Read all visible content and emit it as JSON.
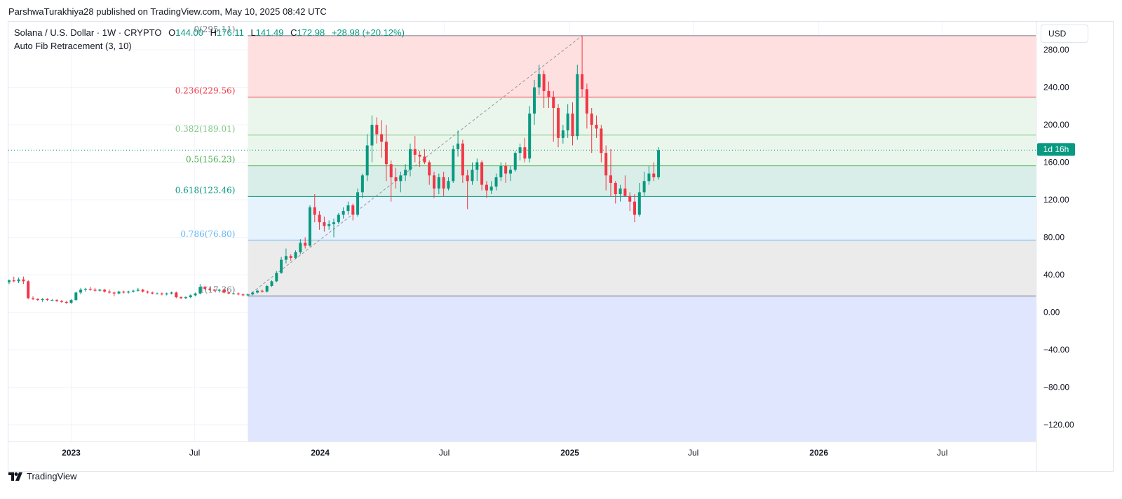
{
  "header": {
    "published": "ParshwaTurakhiya28 published on TradingView.com, May 10, 2025 08:42 UTC"
  },
  "legend": {
    "symbol": "Solana / U.S. Dollar · 1W · CRYPTO",
    "open_label": "O",
    "open": "144.00",
    "high_label": "H",
    "high": "176.11",
    "low_label": "L",
    "low": "141.49",
    "close_label": "C",
    "close": "172.98",
    "change": "+28.98 (+20.12%)",
    "indicator": "Auto Fib Retracement (3, 10)"
  },
  "toolbar": {
    "currency": "USD"
  },
  "footer": {
    "brand": "TradingView"
  },
  "colors": {
    "up": "#089981",
    "down": "#f23645",
    "grid": "#f0f3fa",
    "axis_text": "#131722"
  },
  "chart_data": {
    "type": "candlestick",
    "symbol": "SOL/USD",
    "interval": "1W",
    "x_axis": {
      "ticks": [
        {
          "label": "2023",
          "date": "2023-01-01",
          "bold": true
        },
        {
          "label": "Jul",
          "date": "2023-07-01",
          "bold": false
        },
        {
          "label": "2024",
          "date": "2024-01-01",
          "bold": true
        },
        {
          "label": "Jul",
          "date": "2024-07-01",
          "bold": false
        },
        {
          "label": "2025",
          "date": "2025-01-01",
          "bold": true
        },
        {
          "label": "Jul",
          "date": "2025-07-01",
          "bold": false
        },
        {
          "label": "2026",
          "date": "2026-01-01",
          "bold": true
        },
        {
          "label": "Jul",
          "date": "2026-07-01",
          "bold": false
        }
      ],
      "range": [
        "2022-10-01",
        "2026-11-15"
      ]
    },
    "y_axis": {
      "range": [
        -138,
        310
      ],
      "ticks": [
        "280.00",
        "240.00",
        "200.00",
        "160.00",
        "120.00",
        "80.00",
        "40.00",
        "0.00",
        "−40.00",
        "−80.00",
        "−120.00"
      ],
      "tick_values": [
        280,
        240,
        200,
        160,
        120,
        80,
        40,
        0,
        -40,
        -80,
        -120
      ]
    },
    "last_price": 172.98,
    "countdown": "1d 16h",
    "fib_levels": [
      {
        "label": "0(295.11)",
        "value": 295.11,
        "color": "#787b86",
        "fill": "#ffe0e0"
      },
      {
        "label": "0.236(229.56)",
        "value": 229.56,
        "color": "#f23645",
        "fill": "#eaf6ec"
      },
      {
        "label": "0.382(189.01)",
        "value": 189.01,
        "color": "#81c784",
        "fill": "#eaf6ec"
      },
      {
        "label": "0.5(156.23)",
        "value": 156.23,
        "color": "#4caf50",
        "fill": "#daeee9"
      },
      {
        "label": "0.618(123.46)",
        "value": 123.46,
        "color": "#089981",
        "fill": "#e6f2fc"
      },
      {
        "label": "0.786(76.80)",
        "value": 76.8,
        "color": "#64b5f6",
        "fill": "#ebebeb"
      },
      {
        "label": "1(17.36)",
        "value": 17.36,
        "color": "#787b86",
        "fill": "#dfe6fd"
      }
    ],
    "fib_start_date": "2023-09-17",
    "trend_line": {
      "from": [
        "2023-09-17",
        17.36
      ],
      "to": [
        "2025-01-19",
        295.11
      ]
    },
    "candles": [
      [
        "2022-10-02",
        32,
        35,
        30,
        34
      ],
      [
        "2022-10-09",
        34,
        38,
        32,
        33
      ],
      [
        "2022-10-16",
        33,
        37,
        31,
        35
      ],
      [
        "2022-10-23",
        35,
        38,
        30,
        33
      ],
      [
        "2022-10-30",
        33,
        34,
        14,
        15
      ],
      [
        "2022-11-06",
        15,
        17,
        13,
        14
      ],
      [
        "2022-11-13",
        14,
        15,
        12,
        13
      ],
      [
        "2022-11-20",
        13,
        15,
        11,
        14
      ],
      [
        "2022-11-27",
        14,
        15,
        12,
        13
      ],
      [
        "2022-12-04",
        13,
        14,
        12,
        13
      ],
      [
        "2022-12-11",
        13,
        14,
        11,
        12
      ],
      [
        "2022-12-18",
        12,
        13,
        10,
        11
      ],
      [
        "2022-12-25",
        11,
        12,
        9,
        10
      ],
      [
        "2023-01-01",
        10,
        14,
        9,
        13
      ],
      [
        "2023-01-08",
        13,
        22,
        12,
        21
      ],
      [
        "2023-01-15",
        21,
        26,
        19,
        24
      ],
      [
        "2023-01-22",
        24,
        26,
        22,
        25
      ],
      [
        "2023-01-29",
        25,
        27,
        23,
        24
      ],
      [
        "2023-02-05",
        24,
        26,
        22,
        23
      ],
      [
        "2023-02-12",
        23,
        25,
        22,
        24
      ],
      [
        "2023-02-19",
        24,
        25,
        21,
        22
      ],
      [
        "2023-02-26",
        22,
        24,
        20,
        21
      ],
      [
        "2023-03-05",
        21,
        22,
        17,
        20
      ],
      [
        "2023-03-12",
        20,
        23,
        19,
        22
      ],
      [
        "2023-03-19",
        22,
        23,
        20,
        21
      ],
      [
        "2023-03-26",
        21,
        23,
        20,
        22
      ],
      [
        "2023-04-02",
        22,
        24,
        21,
        23
      ],
      [
        "2023-04-09",
        23,
        26,
        22,
        24
      ],
      [
        "2023-04-16",
        24,
        25,
        21,
        22
      ],
      [
        "2023-04-23",
        22,
        23,
        20,
        21
      ],
      [
        "2023-04-30",
        21,
        22,
        19,
        20
      ],
      [
        "2023-05-07",
        20,
        21,
        19,
        20
      ],
      [
        "2023-05-14",
        20,
        21,
        18,
        19
      ],
      [
        "2023-05-21",
        19,
        21,
        18,
        20
      ],
      [
        "2023-05-28",
        20,
        22,
        19,
        21
      ],
      [
        "2023-06-04",
        21,
        22,
        15,
        16
      ],
      [
        "2023-06-11",
        16,
        17,
        14,
        15
      ],
      [
        "2023-06-18",
        15,
        17,
        14,
        16
      ],
      [
        "2023-06-25",
        16,
        19,
        15,
        18
      ],
      [
        "2023-07-02",
        18,
        21,
        17,
        20
      ],
      [
        "2023-07-09",
        20,
        30,
        19,
        27
      ],
      [
        "2023-07-16",
        27,
        28,
        24,
        25
      ],
      [
        "2023-07-23",
        25,
        26,
        23,
        24
      ],
      [
        "2023-07-30",
        24,
        25,
        22,
        23
      ],
      [
        "2023-08-06",
        23,
        25,
        22,
        24
      ],
      [
        "2023-08-13",
        24,
        25,
        20,
        21
      ],
      [
        "2023-08-20",
        21,
        22,
        19,
        20
      ],
      [
        "2023-08-27",
        20,
        21,
        19,
        20
      ],
      [
        "2023-09-03",
        20,
        21,
        18,
        19
      ],
      [
        "2023-09-10",
        19,
        20,
        17,
        18
      ],
      [
        "2023-09-17",
        18,
        20,
        17,
        19
      ],
      [
        "2023-09-24",
        19,
        22,
        18,
        21
      ],
      [
        "2023-10-01",
        21,
        24,
        20,
        23
      ],
      [
        "2023-10-08",
        23,
        24,
        21,
        22
      ],
      [
        "2023-10-15",
        22,
        29,
        21,
        28
      ],
      [
        "2023-10-22",
        28,
        34,
        27,
        33
      ],
      [
        "2023-10-29",
        33,
        44,
        32,
        42
      ],
      [
        "2023-11-05",
        42,
        59,
        41,
        56
      ],
      [
        "2023-11-12",
        56,
        68,
        52,
        60
      ],
      [
        "2023-11-19",
        60,
        62,
        55,
        58
      ],
      [
        "2023-11-26",
        58,
        66,
        57,
        64
      ],
      [
        "2023-12-03",
        64,
        78,
        62,
        74
      ],
      [
        "2023-12-10",
        74,
        80,
        68,
        71
      ],
      [
        "2023-12-17",
        71,
        114,
        70,
        112
      ],
      [
        "2023-12-24",
        112,
        126,
        96,
        104
      ],
      [
        "2023-12-31",
        104,
        108,
        88,
        96
      ],
      [
        "2024-01-07",
        96,
        102,
        86,
        92
      ],
      [
        "2024-01-14",
        92,
        98,
        88,
        94
      ],
      [
        "2024-01-21",
        94,
        100,
        80,
        96
      ],
      [
        "2024-01-28",
        96,
        106,
        94,
        104
      ],
      [
        "2024-02-04",
        104,
        112,
        100,
        108
      ],
      [
        "2024-02-11",
        108,
        118,
        104,
        114
      ],
      [
        "2024-02-18",
        114,
        116,
        98,
        104
      ],
      [
        "2024-02-25",
        104,
        132,
        102,
        128
      ],
      [
        "2024-03-03",
        128,
        148,
        122,
        146
      ],
      [
        "2024-03-10",
        146,
        190,
        140,
        178
      ],
      [
        "2024-03-17",
        178,
        210,
        160,
        200
      ],
      [
        "2024-03-24",
        200,
        208,
        180,
        190
      ],
      [
        "2024-03-31",
        190,
        205,
        165,
        182
      ],
      [
        "2024-04-07",
        182,
        200,
        140,
        158
      ],
      [
        "2024-04-14",
        158,
        162,
        118,
        144
      ],
      [
        "2024-04-21",
        144,
        154,
        132,
        140
      ],
      [
        "2024-04-28",
        140,
        150,
        128,
        146
      ],
      [
        "2024-05-05",
        146,
        158,
        140,
        152
      ],
      [
        "2024-05-12",
        152,
        180,
        145,
        174
      ],
      [
        "2024-05-19",
        174,
        188,
        160,
        168
      ],
      [
        "2024-05-26",
        168,
        172,
        155,
        166
      ],
      [
        "2024-06-02",
        166,
        174,
        158,
        160
      ],
      [
        "2024-06-09",
        160,
        162,
        136,
        146
      ],
      [
        "2024-06-16",
        146,
        150,
        122,
        132
      ],
      [
        "2024-06-23",
        132,
        148,
        126,
        144
      ],
      [
        "2024-06-30",
        144,
        150,
        124,
        132
      ],
      [
        "2024-07-07",
        132,
        144,
        130,
        140
      ],
      [
        "2024-07-14",
        140,
        178,
        138,
        174
      ],
      [
        "2024-07-21",
        174,
        194,
        166,
        180
      ],
      [
        "2024-07-28",
        180,
        184,
        138,
        146
      ],
      [
        "2024-08-04",
        146,
        152,
        110,
        140
      ],
      [
        "2024-08-11",
        140,
        160,
        136,
        152
      ],
      [
        "2024-08-18",
        152,
        164,
        140,
        160
      ],
      [
        "2024-08-25",
        160,
        162,
        130,
        136
      ],
      [
        "2024-09-01",
        136,
        140,
        122,
        130
      ],
      [
        "2024-09-08",
        130,
        140,
        126,
        134
      ],
      [
        "2024-09-15",
        134,
        148,
        130,
        144
      ],
      [
        "2024-09-22",
        144,
        160,
        140,
        156
      ],
      [
        "2024-09-29",
        156,
        160,
        138,
        148
      ],
      [
        "2024-10-06",
        148,
        156,
        140,
        152
      ],
      [
        "2024-10-13",
        152,
        172,
        150,
        170
      ],
      [
        "2024-10-20",
        170,
        180,
        162,
        176
      ],
      [
        "2024-10-27",
        176,
        186,
        160,
        164
      ],
      [
        "2024-11-03",
        164,
        220,
        160,
        212
      ],
      [
        "2024-11-10",
        212,
        248,
        200,
        240
      ],
      [
        "2024-11-17",
        240,
        264,
        232,
        254
      ],
      [
        "2024-11-24",
        254,
        258,
        218,
        236
      ],
      [
        "2024-12-01",
        236,
        246,
        218,
        230
      ],
      [
        "2024-12-08",
        230,
        236,
        182,
        218
      ],
      [
        "2024-12-15",
        218,
        222,
        176,
        186
      ],
      [
        "2024-12-22",
        186,
        200,
        180,
        194
      ],
      [
        "2024-12-29",
        194,
        222,
        186,
        212
      ],
      [
        "2025-01-05",
        212,
        224,
        178,
        188
      ],
      [
        "2025-01-12",
        188,
        264,
        184,
        254
      ],
      [
        "2025-01-19",
        254,
        295,
        230,
        238
      ],
      [
        "2025-01-26",
        238,
        244,
        196,
        212
      ],
      [
        "2025-02-02",
        212,
        218,
        170,
        200
      ],
      [
        "2025-02-09",
        200,
        210,
        186,
        196
      ],
      [
        "2025-02-16",
        196,
        200,
        160,
        170
      ],
      [
        "2025-02-23",
        170,
        178,
        130,
        146
      ],
      [
        "2025-03-02",
        146,
        174,
        124,
        138
      ],
      [
        "2025-03-09",
        138,
        140,
        116,
        126
      ],
      [
        "2025-03-16",
        126,
        136,
        118,
        132
      ],
      [
        "2025-03-23",
        132,
        146,
        124,
        124
      ],
      [
        "2025-03-30",
        124,
        128,
        108,
        118
      ],
      [
        "2025-04-06",
        118,
        126,
        96,
        104
      ],
      [
        "2025-04-13",
        104,
        138,
        102,
        128
      ],
      [
        "2025-04-20",
        128,
        150,
        124,
        140
      ],
      [
        "2025-04-27",
        140,
        156,
        136,
        148
      ],
      [
        "2025-05-04",
        148,
        160,
        140,
        144
      ],
      [
        "2025-05-11",
        144,
        176.11,
        141.49,
        172.98
      ]
    ]
  }
}
